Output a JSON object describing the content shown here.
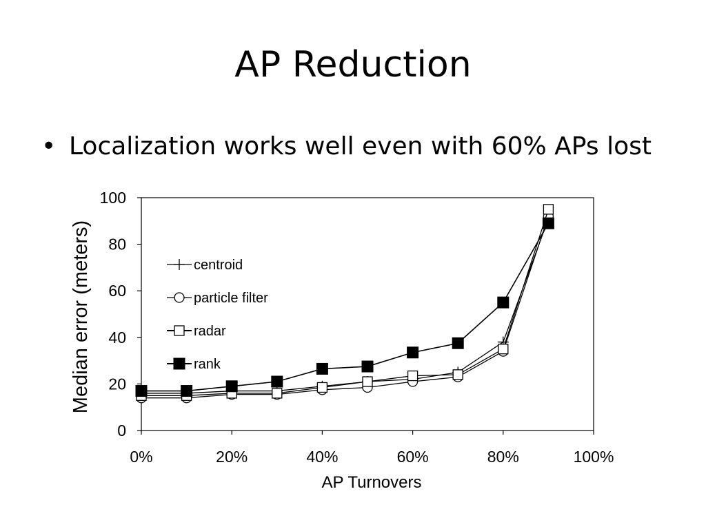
{
  "slide": {
    "title": "AP Reduction",
    "bullet_marker": "•",
    "bullet": "Localization works well even with 60% APs lost"
  },
  "chart_data": {
    "type": "line",
    "title": "",
    "xlabel": "AP Turnovers",
    "ylabel": "Median error (meters)",
    "x": [
      0,
      10,
      20,
      30,
      40,
      50,
      60,
      70,
      80,
      90
    ],
    "xlim": [
      0,
      100
    ],
    "ylim": [
      0,
      100
    ],
    "x_ticks": [
      "0%",
      "20%",
      "40%",
      "60%",
      "80%",
      "100%"
    ],
    "y_ticks": [
      "0",
      "20",
      "40",
      "60",
      "80",
      "100"
    ],
    "grid": false,
    "legend_position": "upper-left inside plot",
    "series": [
      {
        "name": "centroid",
        "marker": "plus",
        "values": [
          16,
          16,
          17,
          17,
          19,
          21,
          22,
          25,
          38,
          91
        ]
      },
      {
        "name": "particle filter",
        "marker": "circle",
        "values": [
          14,
          14,
          15.5,
          15.5,
          17.5,
          18.5,
          21,
          23,
          34,
          92
        ]
      },
      {
        "name": "radar",
        "marker": "square-open",
        "values": [
          15,
          15,
          16,
          16,
          18.5,
          21,
          23.5,
          24,
          35,
          95
        ]
      },
      {
        "name": "rank",
        "marker": "square-filled",
        "values": [
          17,
          17,
          19,
          21,
          26.5,
          27.5,
          33.5,
          37.5,
          55,
          89
        ]
      }
    ]
  }
}
